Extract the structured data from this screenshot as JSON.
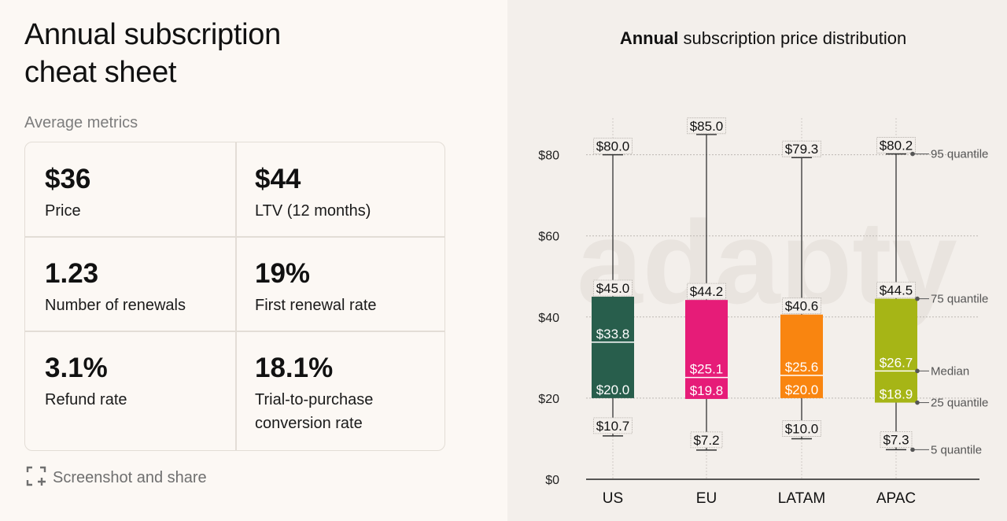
{
  "left": {
    "title": "Annual subscription cheat sheet",
    "subtitle": "Average metrics",
    "metrics": [
      {
        "value": "$36",
        "label": "Price"
      },
      {
        "value": "$44",
        "label": "LTV (12 months)"
      },
      {
        "value": "1.23",
        "label": "Number of renewals"
      },
      {
        "value": "19%",
        "label": "First renewal rate"
      },
      {
        "value": "3.1%",
        "label": "Refund rate"
      },
      {
        "value": "18.1%",
        "label": "Trial-to-purchase conversion rate"
      }
    ],
    "share_label": "Screenshot and share",
    "share_icon": "screenshot-icon"
  },
  "chart_data": {
    "type": "boxplot",
    "title_bold": "Annual",
    "title_rest": " subscription price distribution",
    "categories": [
      "US",
      "EU",
      "LATAM",
      "APAC"
    ],
    "colors": [
      "#285e4c",
      "#e61c78",
      "#f98510",
      "#a6b516"
    ],
    "boxes": [
      {
        "name": "US",
        "q5": 10.7,
        "q25": 20.0,
        "median": 33.8,
        "q75": 45.0,
        "q95": 80.0,
        "labels": {
          "q5": "$10.7",
          "q25": "$20.0",
          "median": "$33.8",
          "q75": "$45.0",
          "q95": "$80.0"
        }
      },
      {
        "name": "EU",
        "q5": 7.2,
        "q25": 19.8,
        "median": 25.1,
        "q75": 44.2,
        "q95": 85.0,
        "labels": {
          "q5": "$7.2",
          "q25": "$19.8",
          "median": "$25.1",
          "q75": "$44.2",
          "q95": "$85.0"
        }
      },
      {
        "name": "LATAM",
        "q5": 10.0,
        "q25": 20.0,
        "median": 25.6,
        "q75": 40.6,
        "q95": 79.3,
        "labels": {
          "q5": "$10.0",
          "q25": "$20.0",
          "median": "$25.6",
          "q75": "$40.6",
          "q95": "$79.3"
        }
      },
      {
        "name": "APAC",
        "q5": 7.3,
        "q25": 18.9,
        "median": 26.7,
        "q75": 44.5,
        "q95": 80.2,
        "labels": {
          "q5": "$7.3",
          "q25": "$18.9",
          "median": "$26.7",
          "q75": "$44.5",
          "q95": "$80.2"
        }
      }
    ],
    "yticks": [
      0,
      20,
      40,
      60,
      80
    ],
    "ytick_labels": [
      "$0",
      "$20",
      "$40",
      "$60",
      "$80"
    ],
    "ylim": [
      0,
      90
    ],
    "annotations": {
      "q95": "95 quantile",
      "q75": "75 quantile",
      "median": "Median",
      "q25": "25 quantile",
      "q5": "5 quantile"
    },
    "watermark": "adapty"
  }
}
